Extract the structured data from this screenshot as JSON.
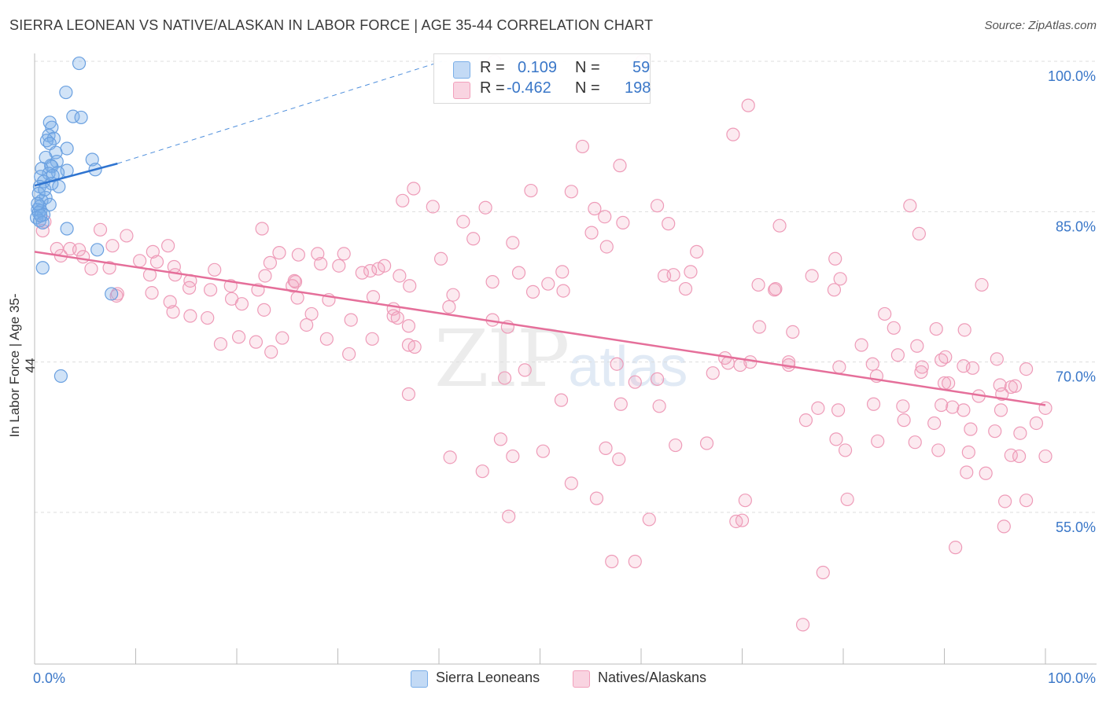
{
  "title": "SIERRA LEONEAN VS NATIVE/ALASKAN IN LABOR FORCE | AGE 35-44 CORRELATION CHART",
  "source": "Source: ZipAtlas.com",
  "watermark": {
    "zip": "ZIP",
    "atlas": "atlas"
  },
  "legend": {
    "r_label": "R =",
    "n_label": "N =",
    "rows": [
      {
        "r": "0.109",
        "n": "59",
        "color": "#7aaee8"
      },
      {
        "r": "-0.462",
        "n": "198",
        "color": "#f2a0bc"
      }
    ]
  },
  "bottom_legend": [
    {
      "label": "Sierra Leoneans",
      "color": "#7aaee8"
    },
    {
      "label": "Natives/Alaskans",
      "color": "#f2a0bc"
    }
  ],
  "chart_data": {
    "type": "scatter",
    "title": "SIERRA LEONEAN VS NATIVE/ALASKAN IN LABOR FORCE | AGE 35-44 CORRELATION CHART",
    "xlabel": "",
    "ylabel": "In Labor Force | Age 35-44",
    "xlim": [
      0,
      100
    ],
    "ylim": [
      37.5,
      102
    ],
    "x_tick_labels": [
      "0.0%",
      "100.0%"
    ],
    "y_ticks": [
      55,
      70,
      85,
      100
    ],
    "y_tick_labels": [
      "55.0%",
      "70.0%",
      "85.0%",
      "100.0%"
    ],
    "grid": true,
    "series": [
      {
        "name": "Sierra Leoneans",
        "color": "#7aaee8",
        "trend": {
          "x0": 0.0,
          "y0": 87.6,
          "x1": 8.2,
          "y1": 89.8,
          "dash_x1": 40.3,
          "dash_y1": 100.0
        },
        "points": [
          [
            4.4,
            99.8
          ],
          [
            3.1,
            96.9
          ],
          [
            3.8,
            94.5
          ],
          [
            4.6,
            94.4
          ],
          [
            1.5,
            93.9
          ],
          [
            1.7,
            93.4
          ],
          [
            1.4,
            92.6
          ],
          [
            1.9,
            92.3
          ],
          [
            1.2,
            92.1
          ],
          [
            1.5,
            91.8
          ],
          [
            3.2,
            91.3
          ],
          [
            2.1,
            90.9
          ],
          [
            1.1,
            90.4
          ],
          [
            5.7,
            90.2
          ],
          [
            2.2,
            90.0
          ],
          [
            1.6,
            89.6
          ],
          [
            1.7,
            89.5
          ],
          [
            0.7,
            89.3
          ],
          [
            3.2,
            89.1
          ],
          [
            2.3,
            88.9
          ],
          [
            6.0,
            89.2
          ],
          [
            1.4,
            88.8
          ],
          [
            1.8,
            88.6
          ],
          [
            0.6,
            88.5
          ],
          [
            0.9,
            88.0
          ],
          [
            1.7,
            87.8
          ],
          [
            2.4,
            87.5
          ],
          [
            0.5,
            87.5
          ],
          [
            1.1,
            86.4
          ],
          [
            0.7,
            86.1
          ],
          [
            1.5,
            85.7
          ],
          [
            0.5,
            85.5
          ],
          [
            0.3,
            85.2
          ],
          [
            0.6,
            85.1
          ],
          [
            0.4,
            84.9
          ],
          [
            0.9,
            84.7
          ],
          [
            0.2,
            84.4
          ],
          [
            0.5,
            84.1
          ],
          [
            0.8,
            83.9
          ],
          [
            3.2,
            83.3
          ],
          [
            6.2,
            81.2
          ],
          [
            0.8,
            79.4
          ],
          [
            7.6,
            76.8
          ],
          [
            2.6,
            68.6
          ],
          [
            0.4,
            86.8
          ],
          [
            0.3,
            85.8
          ],
          [
            1.0,
            87.2
          ],
          [
            0.6,
            84.6
          ]
        ]
      },
      {
        "name": "Natives/Alaskans",
        "color": "#f2a0bc",
        "trend": {
          "x0": 0.0,
          "y0": 81.0,
          "x1": 100.0,
          "y1": 65.7
        },
        "points": [
          [
            45.5,
            100.0
          ],
          [
            60.1,
            100.0
          ],
          [
            70.6,
            95.6
          ],
          [
            69.1,
            92.7
          ],
          [
            54.2,
            91.5
          ],
          [
            57.9,
            89.6
          ],
          [
            37.5,
            87.3
          ],
          [
            36.4,
            86.1
          ],
          [
            49.1,
            87.1
          ],
          [
            53.1,
            87.0
          ],
          [
            44.6,
            85.4
          ],
          [
            39.4,
            85.5
          ],
          [
            61.6,
            85.6
          ],
          [
            55.4,
            85.3
          ],
          [
            86.6,
            85.6
          ],
          [
            56.4,
            84.5
          ],
          [
            42.4,
            84.0
          ],
          [
            58.2,
            83.9
          ],
          [
            62.7,
            83.8
          ],
          [
            73.7,
            83.6
          ],
          [
            22.5,
            83.3
          ],
          [
            6.5,
            83.2
          ],
          [
            1.0,
            84.0
          ],
          [
            0.8,
            83.1
          ],
          [
            55.1,
            82.9
          ],
          [
            87.5,
            82.8
          ],
          [
            9.1,
            82.6
          ],
          [
            43.4,
            82.3
          ],
          [
            47.3,
            81.9
          ],
          [
            56.6,
            81.5
          ],
          [
            3.5,
            81.3
          ],
          [
            7.7,
            81.6
          ],
          [
            13.2,
            81.6
          ],
          [
            2.2,
            81.3
          ],
          [
            4.4,
            81.2
          ],
          [
            11.7,
            81.0
          ],
          [
            24.2,
            80.9
          ],
          [
            28.0,
            80.8
          ],
          [
            30.6,
            80.8
          ],
          [
            65.5,
            81.0
          ],
          [
            2.6,
            80.6
          ],
          [
            4.8,
            80.5
          ],
          [
            26.1,
            80.7
          ],
          [
            40.2,
            80.3
          ],
          [
            79.2,
            80.3
          ],
          [
            10.4,
            80.1
          ],
          [
            12.1,
            80.0
          ],
          [
            23.3,
            79.9
          ],
          [
            28.3,
            79.8
          ],
          [
            30.1,
            79.6
          ],
          [
            34.6,
            79.6
          ],
          [
            13.8,
            79.5
          ],
          [
            7.4,
            79.4
          ],
          [
            5.6,
            79.3
          ],
          [
            17.8,
            79.2
          ],
          [
            33.2,
            79.1
          ],
          [
            34.0,
            79.3
          ],
          [
            52.2,
            79.0
          ],
          [
            64.9,
            79.0
          ],
          [
            47.9,
            78.9
          ],
          [
            62.3,
            78.6
          ],
          [
            32.4,
            78.9
          ],
          [
            36.1,
            78.6
          ],
          [
            11.4,
            78.7
          ],
          [
            22.8,
            78.6
          ],
          [
            13.9,
            78.7
          ],
          [
            76.9,
            78.6
          ],
          [
            63.2,
            78.7
          ],
          [
            79.7,
            78.3
          ],
          [
            25.7,
            78.1
          ],
          [
            15.4,
            78.1
          ],
          [
            45.3,
            78.0
          ],
          [
            50.8,
            77.8
          ],
          [
            25.5,
            77.6
          ],
          [
            19.4,
            77.6
          ],
          [
            37.1,
            77.6
          ],
          [
            15.3,
            77.4
          ],
          [
            25.8,
            78.0
          ],
          [
            71.6,
            77.7
          ],
          [
            64.4,
            77.3
          ],
          [
            73.3,
            77.3
          ],
          [
            79.1,
            77.2
          ],
          [
            93.7,
            77.7
          ],
          [
            17.4,
            77.2
          ],
          [
            22.1,
            77.2
          ],
          [
            52.3,
            77.1
          ],
          [
            73.2,
            77.2
          ],
          [
            49.3,
            77.0
          ],
          [
            8.2,
            76.8
          ],
          [
            11.6,
            76.9
          ],
          [
            33.5,
            76.5
          ],
          [
            8.1,
            76.6
          ],
          [
            41.4,
            76.7
          ],
          [
            26.0,
            76.4
          ],
          [
            19.5,
            76.3
          ],
          [
            29.1,
            76.2
          ],
          [
            13.4,
            76.0
          ],
          [
            20.5,
            75.8
          ],
          [
            41.0,
            75.5
          ],
          [
            35.5,
            75.3
          ],
          [
            22.7,
            75.2
          ],
          [
            35.5,
            74.6
          ],
          [
            13.7,
            75.0
          ],
          [
            15.4,
            74.6
          ],
          [
            27.4,
            74.8
          ],
          [
            84.1,
            74.8
          ],
          [
            17.1,
            74.4
          ],
          [
            35.9,
            74.4
          ],
          [
            45.3,
            74.2
          ],
          [
            31.3,
            74.2
          ],
          [
            26.9,
            73.7
          ],
          [
            37.0,
            73.6
          ],
          [
            46.8,
            73.5
          ],
          [
            71.7,
            73.5
          ],
          [
            85.0,
            73.4
          ],
          [
            89.2,
            73.3
          ],
          [
            75.0,
            73.0
          ],
          [
            92.0,
            73.2
          ],
          [
            20.2,
            72.5
          ],
          [
            21.9,
            72.0
          ],
          [
            24.5,
            72.4
          ],
          [
            33.4,
            72.3
          ],
          [
            28.9,
            72.3
          ],
          [
            18.4,
            71.8
          ],
          [
            37.0,
            71.7
          ],
          [
            81.8,
            71.7
          ],
          [
            87.3,
            71.6
          ],
          [
            37.6,
            71.5
          ],
          [
            23.4,
            71.0
          ],
          [
            31.1,
            70.8
          ],
          [
            68.3,
            70.4
          ],
          [
            85.4,
            70.7
          ],
          [
            90.1,
            70.5
          ],
          [
            89.7,
            70.2
          ],
          [
            95.2,
            70.3
          ],
          [
            68.6,
            69.9
          ],
          [
            74.6,
            70.0
          ],
          [
            82.9,
            69.8
          ],
          [
            70.8,
            70.0
          ],
          [
            48.5,
            69.2
          ],
          [
            69.8,
            69.7
          ],
          [
            57.6,
            69.8
          ],
          [
            74.6,
            69.7
          ],
          [
            87.8,
            69.5
          ],
          [
            79.6,
            69.5
          ],
          [
            91.9,
            69.6
          ],
          [
            92.8,
            69.4
          ],
          [
            98.1,
            69.3
          ],
          [
            67.1,
            68.9
          ],
          [
            83.3,
            68.6
          ],
          [
            87.7,
            69.0
          ],
          [
            46.5,
            68.4
          ],
          [
            59.4,
            68.0
          ],
          [
            61.6,
            68.3
          ],
          [
            90.0,
            67.9
          ],
          [
            90.4,
            67.9
          ],
          [
            95.5,
            67.7
          ],
          [
            97.0,
            67.6
          ],
          [
            96.6,
            67.5
          ],
          [
            95.7,
            66.8
          ],
          [
            93.4,
            66.6
          ],
          [
            37.0,
            66.8
          ],
          [
            52.1,
            66.2
          ],
          [
            58.0,
            65.8
          ],
          [
            61.8,
            65.6
          ],
          [
            83.0,
            65.8
          ],
          [
            89.7,
            65.7
          ],
          [
            85.9,
            65.6
          ],
          [
            90.8,
            65.5
          ],
          [
            100.0,
            65.4
          ],
          [
            95.6,
            65.2
          ],
          [
            77.5,
            65.4
          ],
          [
            79.5,
            65.2
          ],
          [
            91.9,
            65.2
          ],
          [
            76.3,
            64.2
          ],
          [
            86.0,
            64.2
          ],
          [
            89.0,
            63.9
          ],
          [
            99.1,
            63.9
          ],
          [
            92.6,
            63.3
          ],
          [
            95.0,
            63.1
          ],
          [
            97.5,
            62.9
          ],
          [
            46.1,
            62.3
          ],
          [
            79.3,
            62.3
          ],
          [
            83.4,
            62.1
          ],
          [
            87.1,
            62.0
          ],
          [
            89.4,
            61.2
          ],
          [
            50.3,
            61.1
          ],
          [
            56.5,
            61.4
          ],
          [
            63.4,
            61.7
          ],
          [
            66.5,
            61.9
          ],
          [
            80.2,
            61.2
          ],
          [
            92.4,
            61.0
          ],
          [
            97.4,
            60.6
          ],
          [
            100.0,
            60.6
          ],
          [
            41.1,
            60.5
          ],
          [
            47.3,
            60.6
          ],
          [
            57.8,
            60.3
          ],
          [
            96.6,
            60.7
          ],
          [
            44.3,
            59.1
          ],
          [
            92.2,
            59.0
          ],
          [
            94.1,
            58.9
          ],
          [
            53.1,
            57.9
          ],
          [
            55.6,
            56.4
          ],
          [
            80.4,
            56.3
          ],
          [
            70.3,
            56.2
          ],
          [
            98.1,
            56.2
          ],
          [
            96.0,
            56.1
          ],
          [
            46.9,
            54.6
          ],
          [
            60.8,
            54.3
          ],
          [
            70.0,
            54.2
          ],
          [
            69.4,
            54.1
          ],
          [
            95.9,
            53.6
          ],
          [
            91.1,
            51.5
          ],
          [
            57.1,
            50.1
          ],
          [
            59.4,
            50.1
          ],
          [
            78.0,
            49.0
          ],
          [
            76.0,
            43.8
          ]
        ]
      }
    ]
  }
}
